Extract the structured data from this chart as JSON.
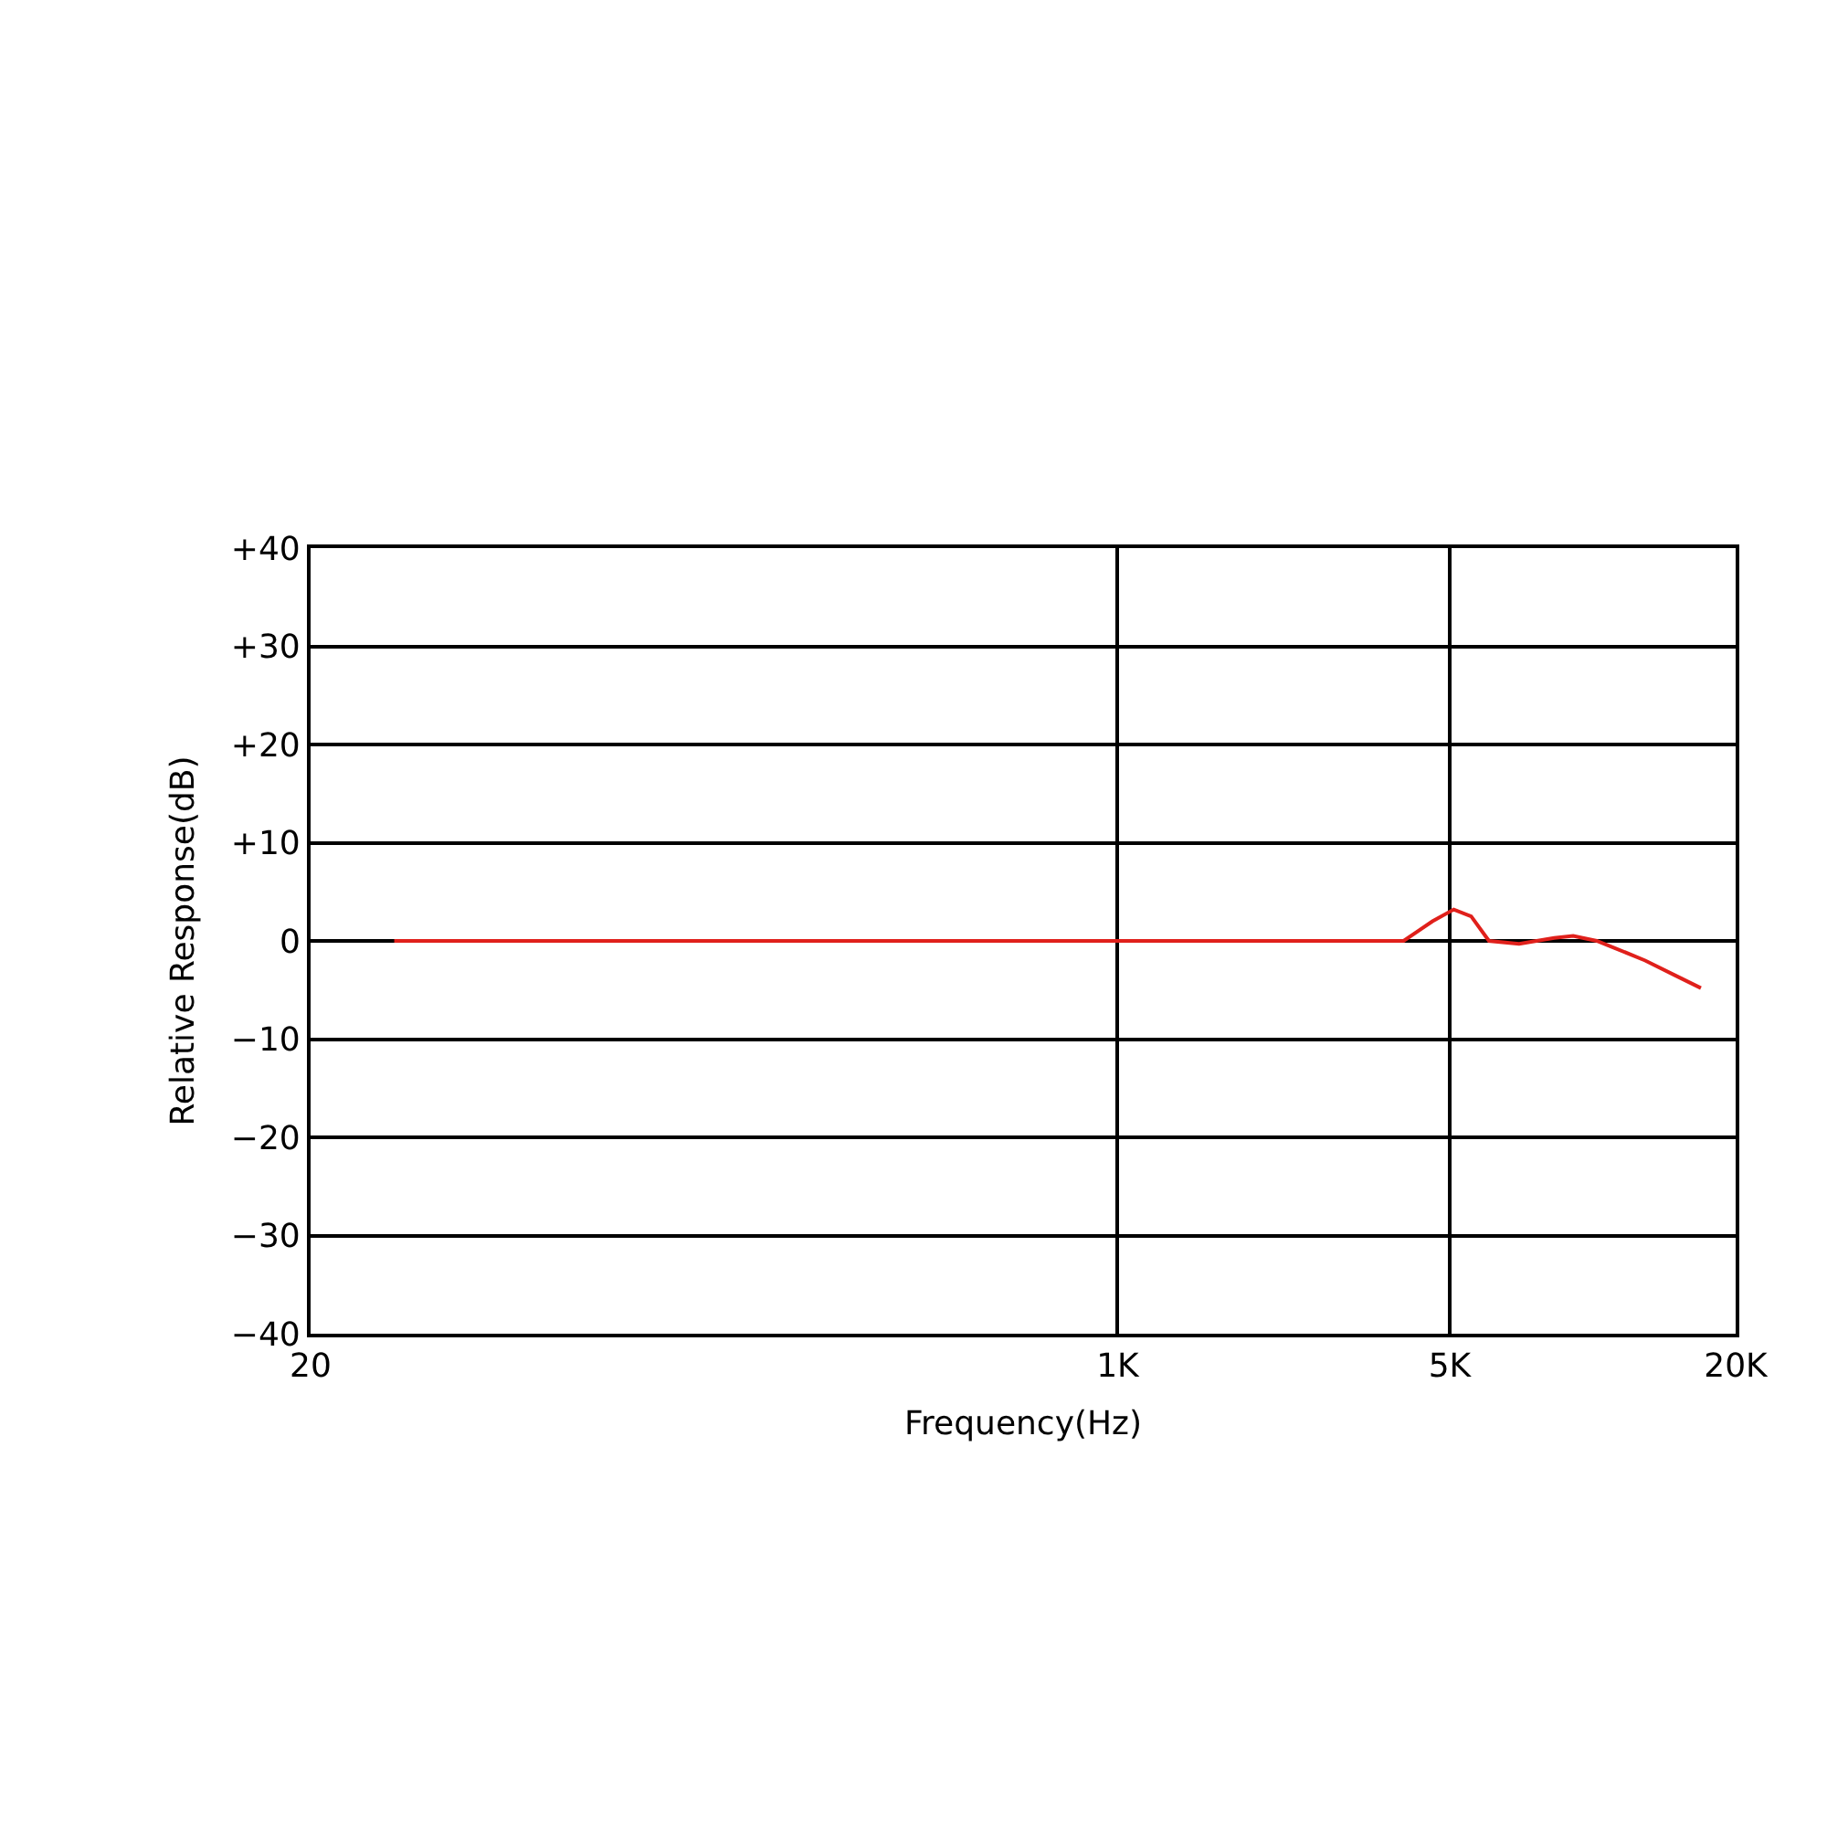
{
  "chart_data": {
    "type": "line",
    "xlabel": "Frequency(Hz)",
    "ylabel": "Relative Response(dB)",
    "x": [
      30,
      200,
      1000,
      4000,
      4600,
      5100,
      5550,
      6050,
      7000,
      8300,
      9100,
      10200,
      11100,
      12900,
      14900,
      16900
    ],
    "series": [
      {
        "color": "#e0201b",
        "values": [
          0,
          0,
          0,
          0,
          2,
          3.2,
          2.5,
          0,
          -0.3,
          0.3,
          0.5,
          0,
          -0.7,
          -2,
          -3.5,
          -4.8
        ]
      }
    ],
    "log": "x",
    "xlim": [
      20,
      20000
    ],
    "xticks": [
      {
        "value": 20,
        "label": "20"
      },
      {
        "value": 1000,
        "label": "1K"
      },
      {
        "value": 5000,
        "label": "5K"
      },
      {
        "value": 20000,
        "label": "20K"
      }
    ],
    "ylim": [
      -40,
      40
    ],
    "yticks": [
      {
        "value": -40,
        "label": "−40"
      },
      {
        "value": -30,
        "label": "−30"
      },
      {
        "value": -20,
        "label": "−20"
      },
      {
        "value": -10,
        "label": "−10"
      },
      {
        "value": 0,
        "label": "0"
      },
      {
        "value": 10,
        "label": "+10"
      },
      {
        "value": 20,
        "label": "+20"
      },
      {
        "value": 30,
        "label": "+30"
      },
      {
        "value": 40,
        "label": "+40"
      }
    ],
    "grid": true,
    "legend": false,
    "marker": "none",
    "line_style": "solid"
  }
}
